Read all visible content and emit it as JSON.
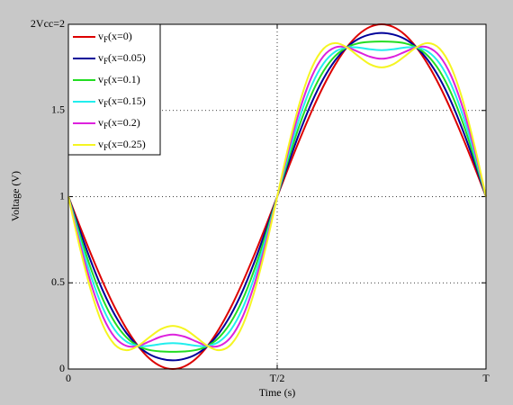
{
  "chart_data": {
    "type": "line",
    "x": [
      0,
      1,
      2,
      3,
      4,
      5,
      6,
      7,
      8,
      9,
      10,
      11,
      12,
      13,
      14,
      15,
      16,
      17,
      18,
      19,
      20,
      21,
      22,
      23,
      24,
      25,
      26,
      27,
      28,
      29,
      30,
      31,
      32,
      33,
      34,
      35,
      36
    ],
    "xlim": [
      0,
      36
    ],
    "xticks": [
      0,
      {
        "value": 18,
        "label": "T/2"
      },
      {
        "value": 36,
        "label": "T"
      }
    ],
    "ylim": [
      0,
      2
    ],
    "yticks": [
      0,
      0.5,
      1,
      1.5,
      {
        "value": 2,
        "label": "2Vcc=2"
      }
    ],
    "xlabel": "Time (s)",
    "ylabel": "Voltage (V)",
    "grid": true,
    "legend": "upper left",
    "series": [
      {
        "name": "vF(x=0)",
        "color": "#dd0000",
        "values": [
          1,
          0.826,
          0.658,
          0.5,
          0.357,
          0.234,
          0.134,
          0.06,
          0.015,
          0,
          0.015,
          0.06,
          0.134,
          0.234,
          0.357,
          0.5,
          0.658,
          0.826,
          1,
          1.174,
          1.342,
          1.5,
          1.643,
          1.766,
          1.866,
          1.94,
          1.985,
          2,
          1.985,
          1.94,
          1.866,
          1.766,
          1.643,
          1.5,
          1.342,
          1.174,
          1
        ]
      },
      {
        "name": "vF(x=0.05)",
        "color": "#000099",
        "values": [
          1,
          0.801,
          0.615,
          0.45,
          0.314,
          0.209,
          0.134,
          0.085,
          0.059,
          0.05,
          0.059,
          0.085,
          0.134,
          0.209,
          0.314,
          0.45,
          0.615,
          0.801,
          1,
          1.199,
          1.385,
          1.55,
          1.686,
          1.791,
          1.866,
          1.915,
          1.941,
          1.95,
          1.941,
          1.915,
          1.866,
          1.791,
          1.686,
          1.55,
          1.385,
          1.199,
          1
        ]
      },
      {
        "name": "vF(x=0.1)",
        "color": "#22dd22",
        "values": [
          1,
          0.776,
          0.571,
          0.4,
          0.271,
          0.184,
          0.134,
          0.11,
          0.102,
          0.1,
          0.102,
          0.11,
          0.134,
          0.184,
          0.271,
          0.4,
          0.571,
          0.776,
          1,
          1.224,
          1.429,
          1.6,
          1.729,
          1.816,
          1.866,
          1.89,
          1.898,
          1.9,
          1.898,
          1.89,
          1.866,
          1.816,
          1.729,
          1.6,
          1.429,
          1.224,
          1
        ]
      },
      {
        "name": "vF(x=0.15)",
        "color": "#22eeee",
        "values": [
          1,
          0.751,
          0.528,
          0.35,
          0.227,
          0.159,
          0.134,
          0.135,
          0.145,
          0.15,
          0.145,
          0.135,
          0.134,
          0.159,
          0.227,
          0.35,
          0.528,
          0.751,
          1,
          1.249,
          1.472,
          1.65,
          1.773,
          1.841,
          1.866,
          1.865,
          1.855,
          1.85,
          1.855,
          1.865,
          1.866,
          1.841,
          1.773,
          1.65,
          1.472,
          1.249,
          1
        ]
      },
      {
        "name": "vF(x=0.2)",
        "color": "#dd22dd",
        "values": [
          1,
          0.726,
          0.485,
          0.3,
          0.184,
          0.134,
          0.134,
          0.16,
          0.188,
          0.2,
          0.188,
          0.16,
          0.134,
          0.134,
          0.184,
          0.3,
          0.485,
          0.726,
          1,
          1.274,
          1.515,
          1.7,
          1.816,
          1.866,
          1.866,
          1.84,
          1.812,
          1.8,
          1.812,
          1.84,
          1.866,
          1.866,
          1.816,
          1.7,
          1.515,
          1.274,
          1
        ]
      },
      {
        "name": "vF(x=0.25)",
        "color": "#f5f522",
        "values": [
          1,
          0.701,
          0.442,
          0.25,
          0.141,
          0.109,
          0.134,
          0.185,
          0.232,
          0.25,
          0.232,
          0.185,
          0.134,
          0.109,
          0.141,
          0.25,
          0.442,
          0.701,
          1,
          1.299,
          1.558,
          1.75,
          1.859,
          1.891,
          1.866,
          1.815,
          1.768,
          1.75,
          1.768,
          1.815,
          1.866,
          1.891,
          1.859,
          1.75,
          1.558,
          1.299,
          1
        ]
      }
    ]
  }
}
